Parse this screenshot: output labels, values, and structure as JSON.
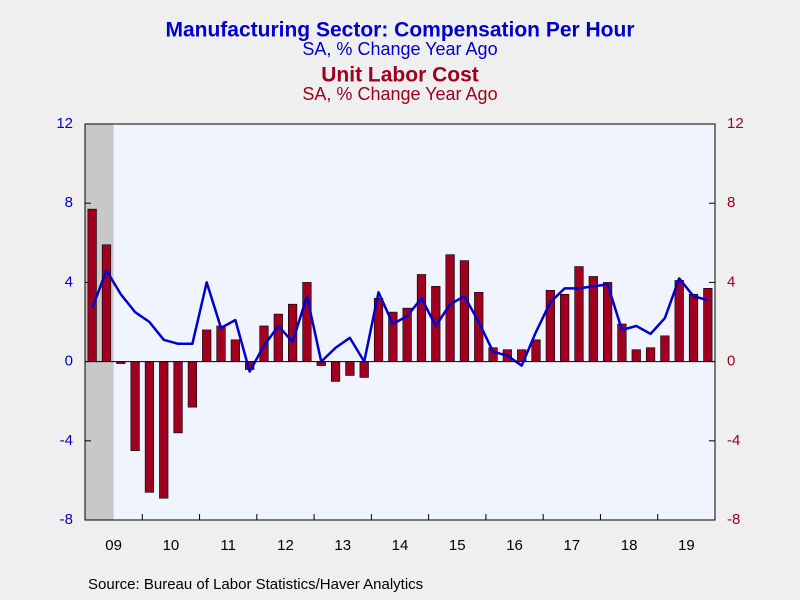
{
  "chart_data": {
    "type": "bar_line",
    "series": [
      {
        "name": "Manufacturing Sector: Compensation Per Hour",
        "subtitle": "SA, % Change   Year Ago",
        "type": "line",
        "axis": "y",
        "color": "#0000cc",
        "values": [
          2.7,
          4.6,
          3.4,
          2.5,
          2.0,
          1.1,
          0.9,
          0.9,
          4.0,
          1.7,
          2.1,
          -0.5,
          0.8,
          1.8,
          1.0,
          3.3,
          0.0,
          0.7,
          1.2,
          0.0,
          3.5,
          1.9,
          2.3,
          3.2,
          1.8,
          2.9,
          3.3,
          2.0,
          0.5,
          0.3,
          -0.2,
          1.5,
          3.0,
          3.7,
          3.7,
          3.8,
          3.9,
          1.6,
          1.8,
          1.4,
          2.2,
          4.2,
          3.3,
          3.1
        ]
      },
      {
        "name": "Unit Labor Cost",
        "subtitle": "SA, % Change   Year Ago",
        "type": "bar",
        "axis": "y2",
        "color": "#a00020",
        "values": [
          7.7,
          5.9,
          -0.1,
          -4.5,
          -6.6,
          -6.9,
          -3.6,
          -2.3,
          1.6,
          1.8,
          1.1,
          -0.4,
          1.8,
          2.4,
          2.9,
          4.0,
          -0.2,
          -1.0,
          -0.7,
          -0.8,
          3.2,
          2.5,
          2.7,
          4.4,
          3.8,
          5.4,
          5.1,
          3.5,
          0.7,
          0.6,
          0.6,
          1.1,
          3.6,
          3.4,
          4.8,
          4.3,
          4.0,
          1.9,
          0.6,
          0.7,
          1.3,
          4.1,
          3.4,
          3.7
        ]
      }
    ],
    "years": [
      "09",
      "10",
      "11",
      "12",
      "13",
      "14",
      "15",
      "16",
      "17",
      "18",
      "19"
    ],
    "shade": [
      0,
      1
    ],
    "ylim": [
      -8,
      12
    ],
    "yticks": [
      -8,
      -4,
      0,
      4,
      8,
      12
    ],
    "y2lim": [
      -8,
      12
    ],
    "y2ticks": [
      -8,
      -4,
      0,
      4,
      8,
      12
    ],
    "source": "Source:  Bureau of Labor Statistics/Haver Analytics"
  }
}
